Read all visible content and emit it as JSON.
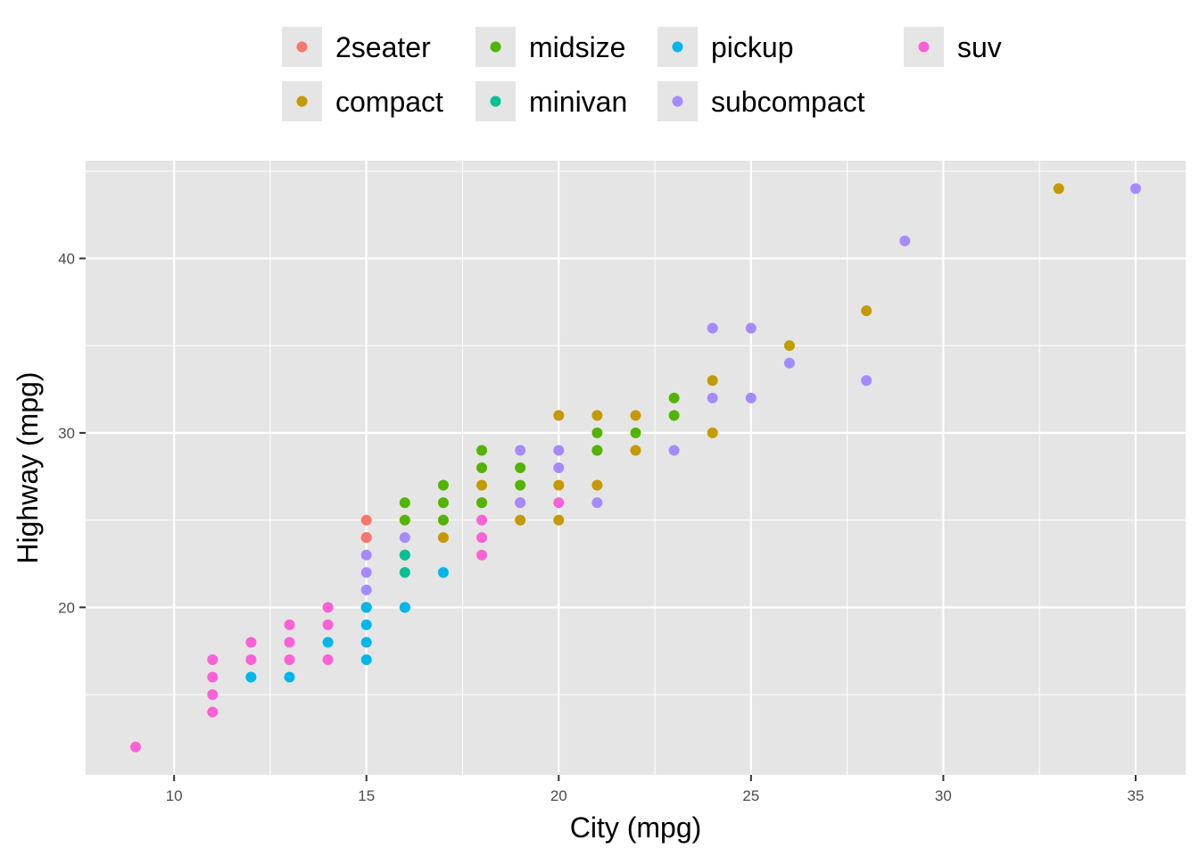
{
  "chart_data": {
    "type": "scatter",
    "title": "",
    "xlabel": "City (mpg)",
    "ylabel": "Highway (mpg)",
    "xlim": [
      7.7,
      36.3
    ],
    "ylim": [
      10.4,
      45.6
    ],
    "x_ticks": [
      10,
      15,
      20,
      25,
      30,
      35
    ],
    "y_ticks": [
      20,
      30,
      40
    ],
    "grid": true,
    "legend_position": "top",
    "background": "#e5e5e5",
    "series": [
      {
        "name": "2seater",
        "color": "#F8766D",
        "points": [
          [
            15,
            24
          ],
          [
            15,
            25
          ],
          [
            15,
            24
          ]
        ]
      },
      {
        "name": "compact",
        "color": "#C49A00",
        "points": [
          [
            16,
            23
          ],
          [
            17,
            24
          ],
          [
            18,
            26
          ],
          [
            18,
            27
          ],
          [
            19,
            25
          ],
          [
            19,
            26
          ],
          [
            20,
            25
          ],
          [
            20,
            27
          ],
          [
            20,
            31
          ],
          [
            21,
            27
          ],
          [
            21,
            29
          ],
          [
            21,
            31
          ],
          [
            22,
            29
          ],
          [
            22,
            31
          ],
          [
            24,
            30
          ],
          [
            24,
            33
          ],
          [
            26,
            35
          ],
          [
            28,
            37
          ],
          [
            33,
            44
          ]
        ]
      },
      {
        "name": "midsize",
        "color": "#53B400",
        "points": [
          [
            16,
            25
          ],
          [
            16,
            26
          ],
          [
            17,
            25
          ],
          [
            17,
            26
          ],
          [
            17,
            27
          ],
          [
            18,
            26
          ],
          [
            18,
            28
          ],
          [
            18,
            29
          ],
          [
            19,
            27
          ],
          [
            19,
            28
          ],
          [
            21,
            29
          ],
          [
            21,
            30
          ],
          [
            22,
            30
          ],
          [
            23,
            31
          ],
          [
            23,
            32
          ]
        ]
      },
      {
        "name": "minivan",
        "color": "#00C094",
        "points": [
          [
            16,
            22
          ],
          [
            16,
            23
          ],
          [
            15,
            20
          ],
          [
            16,
            20
          ]
        ]
      },
      {
        "name": "pickup",
        "color": "#00B6EB",
        "points": [
          [
            12,
            16
          ],
          [
            13,
            16
          ],
          [
            14,
            18
          ],
          [
            15,
            17
          ],
          [
            15,
            18
          ],
          [
            15,
            19
          ],
          [
            15,
            20
          ],
          [
            16,
            20
          ],
          [
            17,
            22
          ]
        ]
      },
      {
        "name": "subcompact",
        "color": "#A58AFF",
        "points": [
          [
            15,
            21
          ],
          [
            15,
            22
          ],
          [
            15,
            23
          ],
          [
            16,
            24
          ],
          [
            19,
            26
          ],
          [
            19,
            29
          ],
          [
            20,
            28
          ],
          [
            20,
            29
          ],
          [
            21,
            26
          ],
          [
            23,
            29
          ],
          [
            24,
            32
          ],
          [
            24,
            36
          ],
          [
            25,
            32
          ],
          [
            25,
            36
          ],
          [
            26,
            34
          ],
          [
            28,
            33
          ],
          [
            29,
            41
          ],
          [
            35,
            44
          ]
        ]
      },
      {
        "name": "suv",
        "color": "#FB61D7",
        "points": [
          [
            9,
            12
          ],
          [
            11,
            14
          ],
          [
            11,
            15
          ],
          [
            11,
            16
          ],
          [
            11,
            17
          ],
          [
            12,
            17
          ],
          [
            12,
            18
          ],
          [
            13,
            17
          ],
          [
            13,
            18
          ],
          [
            13,
            19
          ],
          [
            14,
            17
          ],
          [
            14,
            19
          ],
          [
            14,
            20
          ],
          [
            18,
            23
          ],
          [
            18,
            24
          ],
          [
            18,
            25
          ],
          [
            20,
            26
          ]
        ]
      }
    ]
  }
}
